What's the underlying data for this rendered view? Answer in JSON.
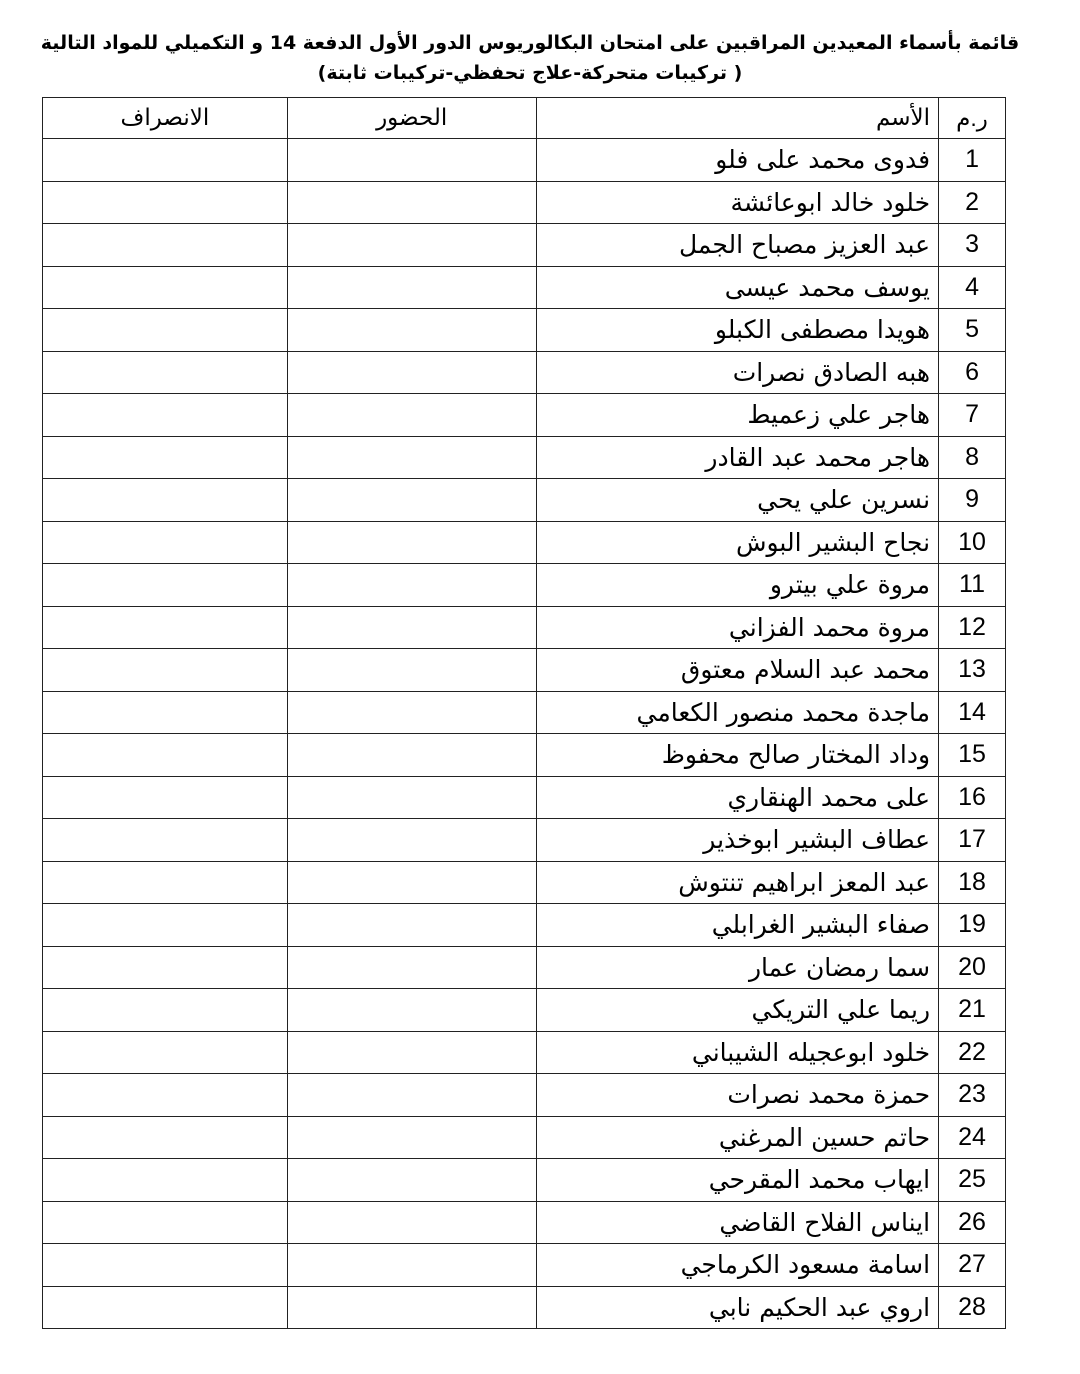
{
  "title_line1": "قائمة بأسماء المعيدين المراقبين على امتحان البكالوريوس الدور الأول الدفعة 14 و التكميلي للمواد التالية",
  "title_line2": "( تركيبات متحركة-علاج تحفظي-تركيبات ثابتة)",
  "table": {
    "headers": {
      "num": "ر.م",
      "name": "الأسم",
      "attendance": "الحضور",
      "departure": "الانصراف"
    },
    "rows": [
      {
        "num": "1",
        "name": "فدوى محمد على فلو"
      },
      {
        "num": "2",
        "name": "خلود خالد ابوعائشة"
      },
      {
        "num": "3",
        "name": "عبد العزيز مصباح الجمل"
      },
      {
        "num": "4",
        "name": "يوسف محمد عيسى"
      },
      {
        "num": "5",
        "name": "هويدا مصطفى الكبلو"
      },
      {
        "num": "6",
        "name": "هبه الصادق نصرات"
      },
      {
        "num": "7",
        "name": "هاجر علي زعميط"
      },
      {
        "num": "8",
        "name": "هاجر محمد عبد القادر"
      },
      {
        "num": "9",
        "name": "نسرين علي يحي"
      },
      {
        "num": "10",
        "name": "نجاح البشير البوش"
      },
      {
        "num": "11",
        "name": "مروة علي بيترو"
      },
      {
        "num": "12",
        "name": "مروة محمد الفزاني"
      },
      {
        "num": "13",
        "name": "محمد عبد السلام معتوق"
      },
      {
        "num": "14",
        "name": "ماجدة محمد منصور الكعامي"
      },
      {
        "num": "15",
        "name": "وداد المختار صالح محفوظ"
      },
      {
        "num": "16",
        "name": "على محمد الهنقاري"
      },
      {
        "num": "17",
        "name": "عطاف البشير ابوخذير"
      },
      {
        "num": "18",
        "name": "عبد المعز ابراهيم تنتوش"
      },
      {
        "num": "19",
        "name": "صفاء البشير الغرابلي"
      },
      {
        "num": "20",
        "name": "سما رمضان عمار"
      },
      {
        "num": "21",
        "name": "ريما علي التريكي"
      },
      {
        "num": "22",
        "name": "خلود ابوعجيله الشيباني"
      },
      {
        "num": "23",
        "name": "حمزة محمد نصرات"
      },
      {
        "num": "24",
        "name": "حاتم حسين المرغني"
      },
      {
        "num": "25",
        "name": "ايهاب محمد المقرحي"
      },
      {
        "num": "26",
        "name": "ايناس الفلاح القاضي"
      },
      {
        "num": "27",
        "name": "اسامة مسعود الكرماجي"
      },
      {
        "num": "28",
        "name": "اروي عبد الحكيم نابي"
      }
    ]
  }
}
